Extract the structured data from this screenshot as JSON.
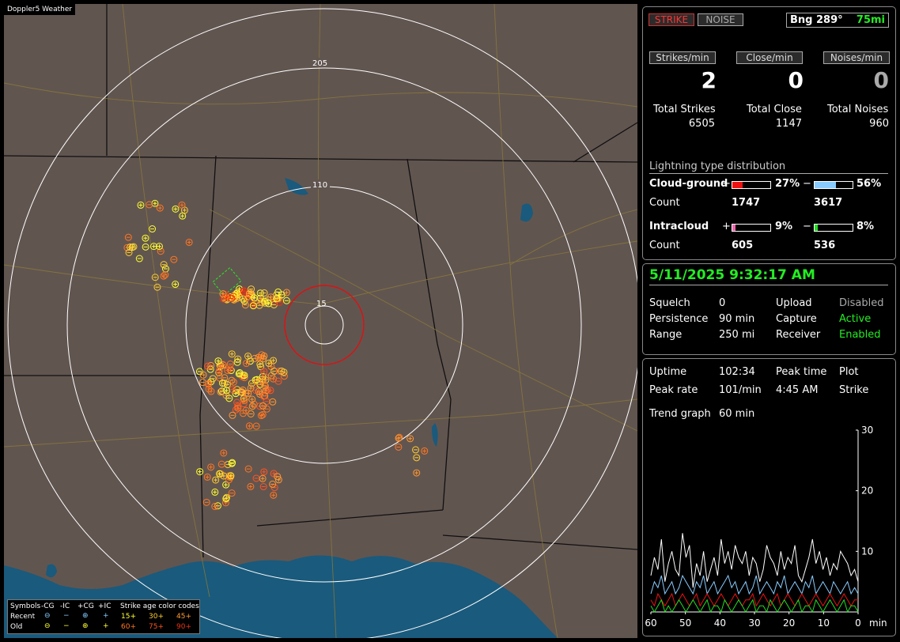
{
  "window": {
    "title": "Doppler5 Weather"
  },
  "header": {
    "strike_btn": "STRIKE",
    "noise_btn": "NOISE",
    "bearing": "Bng 289°",
    "distance": "75mi"
  },
  "rates": {
    "strikes_label": "Strikes/min",
    "close_label": "Close/min",
    "noises_label": "Noises/min",
    "strikes": "2",
    "close": "0",
    "noises": "0"
  },
  "totals": {
    "strikes_label": "Total Strikes",
    "close_label": "Total Close",
    "noises_label": "Total Noises",
    "strikes": "6505",
    "close": "1147",
    "noises": "960"
  },
  "distribution": {
    "title": "Lightning type distribution",
    "cg_label": "Cloud-ground",
    "ic_label": "Intracloud",
    "count_label": "Count",
    "plus_sign": "+",
    "minus_sign": "−",
    "cg_plus_pct": "27%",
    "cg_minus_pct": "56%",
    "cg_plus_count": "1747",
    "cg_minus_count": "3617",
    "ic_plus_pct": "9%",
    "ic_minus_pct": "8%",
    "ic_plus_count": "605",
    "ic_minus_count": "536",
    "cg_plus_frac": 0.27,
    "cg_minus_frac": 0.56,
    "ic_plus_frac": 0.09,
    "ic_minus_frac": 0.08,
    "colors": {
      "cg_plus": "#ee1111",
      "cg_minus": "#88ccff",
      "ic_plus": "#ee66aa",
      "ic_minus": "#22dd22"
    }
  },
  "status": {
    "datetime": "5/11/2025 9:32:17 AM",
    "squelch_label": "Squelch",
    "squelch": "0",
    "persistence_label": "Persistence",
    "persistence": "90 min",
    "range_label": "Range",
    "range": "250 mi",
    "upload_label": "Upload",
    "upload": "Disabled",
    "capture_label": "Capture",
    "capture": "Active",
    "receiver_label": "Receiver",
    "receiver": "Enabled"
  },
  "stats": {
    "uptime_label": "Uptime",
    "uptime": "102:34",
    "peak_time_label": "Peak time",
    "peak_time": "4:45 AM",
    "plot_label": "Plot",
    "plot": "Strike",
    "peak_rate_label": "Peak rate",
    "peak_rate": "101/min",
    "trend_label": "Trend graph",
    "trend": "60 min"
  },
  "map": {
    "ring_labels": [
      "205",
      "110",
      "15"
    ],
    "colors": {
      "land": "#615550",
      "water": "#1a5a7c",
      "rings": "#ffffff",
      "close_ring": "#e01010",
      "roads": "#8a7a3a",
      "borders": "#101010"
    }
  },
  "legend": {
    "symbols_label": "Symbols",
    "col_cg_minus": "-CG",
    "col_ic_minus": "-IC",
    "col_cg_plus": "+CG",
    "col_ic_plus": "+IC",
    "age_label": "Strike age color codes",
    "recent_label": "Recent",
    "old_label": "Old",
    "ages": [
      "15+",
      "30+",
      "45+",
      "60+",
      "75+",
      "90+"
    ],
    "age_colors": [
      "#ffff33",
      "#ffcc33",
      "#ff9933",
      "#ff7722",
      "#ff5522",
      "#ee3311"
    ]
  },
  "chart_data": {
    "type": "line",
    "title": "",
    "xlabel": "min",
    "ylabel": "",
    "xlim": [
      60,
      0
    ],
    "ylim": [
      0,
      30
    ],
    "x_ticks": [
      "60",
      "50",
      "40",
      "30",
      "20",
      "10",
      "0"
    ],
    "y_ticks": [
      "10",
      "20",
      "30"
    ],
    "series": [
      {
        "color": "#ffffff",
        "values": [
          6,
          9,
          7,
          12,
          5,
          8,
          10,
          7,
          6,
          13,
          9,
          11,
          4,
          8,
          6,
          10,
          5,
          7,
          9,
          6,
          12,
          8,
          10,
          7,
          11,
          9,
          8,
          10,
          6,
          9,
          8,
          5,
          7,
          11,
          9,
          8,
          6,
          10,
          7,
          9,
          8,
          11,
          6,
          5,
          7,
          9,
          12,
          8,
          10,
          7,
          9,
          6,
          8,
          7,
          10,
          9,
          8,
          6,
          7,
          5
        ]
      },
      {
        "color": "#88ccff",
        "values": [
          3,
          5,
          4,
          6,
          3,
          4,
          5,
          3,
          4,
          6,
          5,
          4,
          3,
          5,
          4,
          6,
          3,
          4,
          5,
          3,
          4,
          5,
          6,
          4,
          5,
          3,
          4,
          5,
          3,
          4,
          6,
          3,
          4,
          5,
          4,
          3,
          5,
          4,
          6,
          3,
          4,
          5,
          4,
          3,
          5,
          4,
          6,
          3,
          4,
          5,
          4,
          3,
          5,
          4,
          3,
          4,
          5,
          3,
          4,
          3
        ]
      },
      {
        "color": "#ee1111",
        "values": [
          2,
          1,
          3,
          2,
          1,
          2,
          3,
          1,
          2,
          3,
          2,
          1,
          2,
          3,
          1,
          2,
          3,
          2,
          1,
          2,
          3,
          2,
          1,
          2,
          3,
          2,
          1,
          2,
          2,
          3,
          1,
          2,
          3,
          2,
          1,
          2,
          3,
          1,
          2,
          3,
          2,
          1,
          2,
          3,
          2,
          1,
          2,
          3,
          2,
          1,
          2,
          3,
          2,
          1,
          2,
          3,
          2,
          1,
          2,
          2
        ]
      },
      {
        "color": "#22dd22",
        "values": [
          1,
          0,
          1,
          2,
          0,
          1,
          0,
          1,
          2,
          1,
          0,
          1,
          2,
          1,
          0,
          1,
          2,
          0,
          1,
          1,
          0,
          2,
          1,
          0,
          1,
          2,
          1,
          0,
          1,
          2,
          0,
          1,
          1,
          0,
          2,
          1,
          0,
          1,
          2,
          1,
          0,
          1,
          2,
          0,
          1,
          1,
          0,
          2,
          1,
          0,
          1,
          2,
          1,
          0,
          1,
          2,
          0,
          1,
          1,
          0
        ]
      }
    ]
  }
}
